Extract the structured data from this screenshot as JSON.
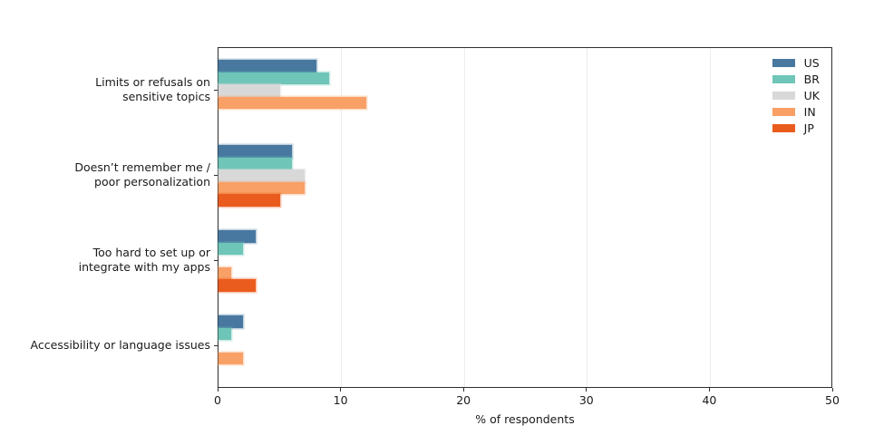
{
  "chart_data": {
    "type": "bar",
    "orientation": "horizontal",
    "title": "",
    "xlabel": "% of respondents",
    "ylabel": "",
    "xlim": [
      0,
      50
    ],
    "xticks": [
      0,
      10,
      20,
      30,
      40,
      50
    ],
    "grid": "vertical-light",
    "legend_position": "upper right",
    "categories": [
      "Limits or refusals on sensitive topics",
      "Doesn’t remember me / poor personalization",
      "Too hard to set up or integrate with my apps",
      "Accessibility or language issues"
    ],
    "category_lines": [
      [
        "Limits or refusals on",
        "sensitive topics"
      ],
      [
        "Doesn’t remember me /",
        "poor personalization"
      ],
      [
        "Too hard to set up or",
        "integrate with my apps"
      ],
      [
        "Accessibility or language issues"
      ]
    ],
    "series": [
      {
        "name": "US",
        "color": "#4878a0",
        "values": [
          8,
          6,
          3,
          2
        ]
      },
      {
        "name": "BR",
        "color": "#6ec5b8",
        "values": [
          9,
          6,
          2,
          1
        ]
      },
      {
        "name": "UK",
        "color": "#d8d8d8",
        "values": [
          5,
          7,
          0,
          0
        ]
      },
      {
        "name": "IN",
        "color": "#f8a066",
        "values": [
          12,
          7,
          1,
          2
        ]
      },
      {
        "name": "JP",
        "color": "#ea5c1e",
        "values": [
          0,
          5,
          3,
          0
        ]
      }
    ],
    "colors": {
      "spine": "#2e2e2e",
      "gridline": "#ececec",
      "text": "#1a1a1a"
    }
  }
}
